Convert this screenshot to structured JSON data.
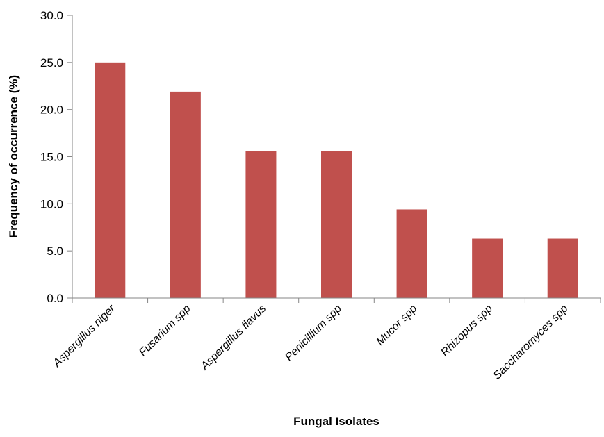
{
  "chart_data": {
    "type": "bar",
    "title": "",
    "xlabel": "Fungal Isolates",
    "ylabel": "Frequency of occurrence (%)",
    "categories": [
      "Aspergillus niger",
      "Fusarium spp",
      "Aspergillus flavus",
      "Penicillium spp",
      "Mucor spp",
      "Rhizopus spp",
      "Saccharomyces spp"
    ],
    "values": [
      25.0,
      21.9,
      15.6,
      15.6,
      9.4,
      6.3,
      6.3
    ],
    "ylim": [
      0,
      30
    ],
    "yticks": [
      "0.0",
      "5.0",
      "10.0",
      "15.0",
      "20.0",
      "25.0",
      "30.0"
    ],
    "grid": false,
    "legend": "none",
    "bar_color": "#C0504D",
    "axis_color": "#868686"
  }
}
